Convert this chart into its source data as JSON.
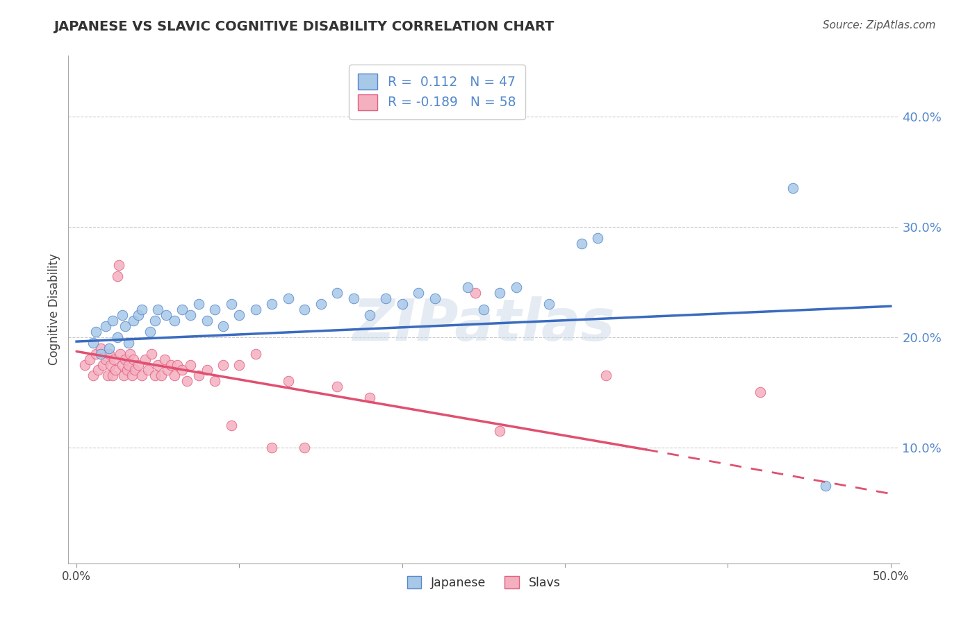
{
  "title": "JAPANESE VS SLAVIC COGNITIVE DISABILITY CORRELATION CHART",
  "source_text": "Source: ZipAtlas.com",
  "ylabel": "Cognitive Disability",
  "legend_label1": "Japanese",
  "legend_label2": "Slavs",
  "R1": 0.112,
  "N1": 47,
  "R2": -0.189,
  "N2": 58,
  "xlim": [
    -0.005,
    0.505
  ],
  "ylim": [
    -0.005,
    0.455
  ],
  "xticks": [
    0.0,
    0.1,
    0.2,
    0.3,
    0.4,
    0.5
  ],
  "yticks": [
    0.1,
    0.2,
    0.3,
    0.4
  ],
  "color_japanese": "#a8c8e8",
  "color_japanese_edge": "#5588cc",
  "color_slavs": "#f5b0c0",
  "color_slavs_edge": "#e06080",
  "color_line_japanese": "#3a6bbf",
  "color_line_slavs": "#e05070",
  "background_color": "#ffffff",
  "watermark_text": "ZIPatlas",
  "japanese_x": [
    0.01,
    0.012,
    0.015,
    0.018,
    0.02,
    0.022,
    0.025,
    0.028,
    0.03,
    0.032,
    0.035,
    0.038,
    0.04,
    0.045,
    0.048,
    0.05,
    0.055,
    0.06,
    0.065,
    0.07,
    0.075,
    0.08,
    0.085,
    0.09,
    0.095,
    0.1,
    0.11,
    0.12,
    0.13,
    0.14,
    0.15,
    0.16,
    0.17,
    0.18,
    0.19,
    0.2,
    0.21,
    0.22,
    0.24,
    0.25,
    0.26,
    0.27,
    0.29,
    0.31,
    0.32,
    0.44,
    0.46
  ],
  "japanese_y": [
    0.195,
    0.205,
    0.185,
    0.21,
    0.19,
    0.215,
    0.2,
    0.22,
    0.21,
    0.195,
    0.215,
    0.22,
    0.225,
    0.205,
    0.215,
    0.225,
    0.22,
    0.215,
    0.225,
    0.22,
    0.23,
    0.215,
    0.225,
    0.21,
    0.23,
    0.22,
    0.225,
    0.23,
    0.235,
    0.225,
    0.23,
    0.24,
    0.235,
    0.22,
    0.235,
    0.23,
    0.24,
    0.235,
    0.245,
    0.225,
    0.24,
    0.245,
    0.23,
    0.285,
    0.29,
    0.335,
    0.065
  ],
  "slavs_x": [
    0.005,
    0.008,
    0.01,
    0.012,
    0.013,
    0.015,
    0.016,
    0.018,
    0.019,
    0.02,
    0.021,
    0.022,
    0.023,
    0.024,
    0.025,
    0.026,
    0.027,
    0.028,
    0.029,
    0.03,
    0.031,
    0.032,
    0.033,
    0.034,
    0.035,
    0.036,
    0.038,
    0.04,
    0.042,
    0.044,
    0.046,
    0.048,
    0.05,
    0.052,
    0.054,
    0.056,
    0.058,
    0.06,
    0.062,
    0.065,
    0.068,
    0.07,
    0.075,
    0.08,
    0.085,
    0.09,
    0.095,
    0.1,
    0.11,
    0.12,
    0.13,
    0.14,
    0.16,
    0.18,
    0.245,
    0.26,
    0.325,
    0.42
  ],
  "slavs_y": [
    0.175,
    0.18,
    0.165,
    0.185,
    0.17,
    0.19,
    0.175,
    0.18,
    0.165,
    0.185,
    0.175,
    0.165,
    0.18,
    0.17,
    0.255,
    0.265,
    0.185,
    0.175,
    0.165,
    0.18,
    0.17,
    0.175,
    0.185,
    0.165,
    0.18,
    0.17,
    0.175,
    0.165,
    0.18,
    0.17,
    0.185,
    0.165,
    0.175,
    0.165,
    0.18,
    0.17,
    0.175,
    0.165,
    0.175,
    0.17,
    0.16,
    0.175,
    0.165,
    0.17,
    0.16,
    0.175,
    0.12,
    0.175,
    0.185,
    0.1,
    0.16,
    0.1,
    0.155,
    0.145,
    0.24,
    0.115,
    0.165,
    0.15
  ],
  "j_line_x0": 0.0,
  "j_line_x1": 0.5,
  "j_line_y0": 0.196,
  "j_line_y1": 0.228,
  "s_line_x0": 0.0,
  "s_line_x1": 0.5,
  "s_line_y0": 0.187,
  "s_line_y1": 0.058,
  "s_line_solid_end_x": 0.35,
  "s_line_solid_end_y": 0.098
}
